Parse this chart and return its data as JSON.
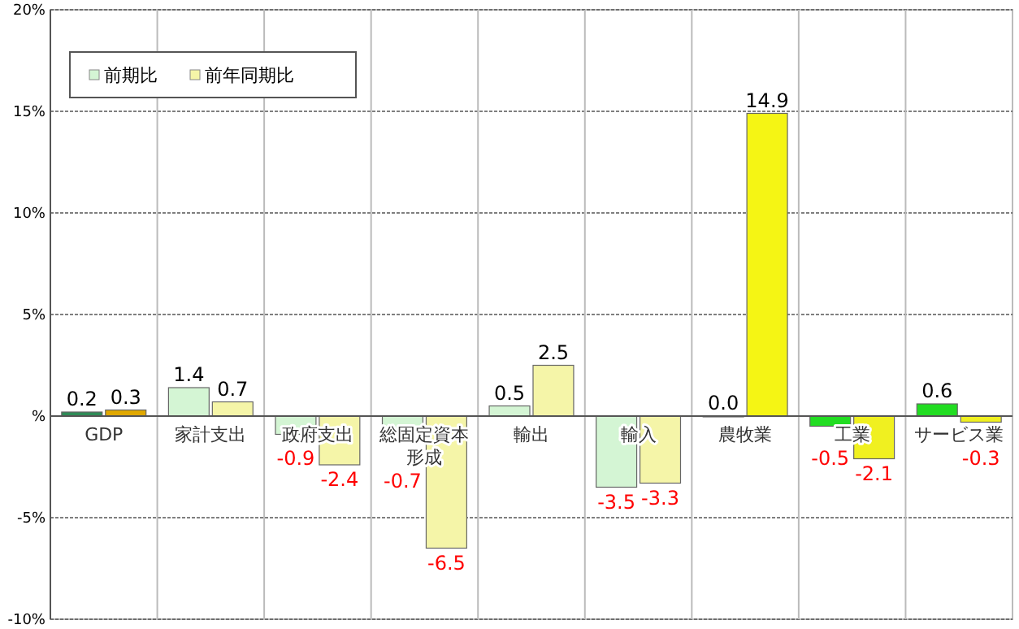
{
  "chart_data": {
    "type": "bar",
    "categories": [
      "GDP",
      "家計支出",
      "政府支出",
      "総固定資本形成",
      "輸出",
      "輸入",
      "農牧業",
      "工業",
      "サービス業"
    ],
    "series": [
      {
        "name": "前期比",
        "color": "#d4f5d4",
        "colors": [
          "#2e8b57",
          "#d4f5d4",
          "#d4f5d4",
          "#d4f5d4",
          "#d4f5d4",
          "#d4f5d4",
          "#d4f5d4",
          "#22dd22",
          "#22dd22"
        ],
        "values": [
          0.2,
          1.4,
          -0.9,
          -0.7,
          0.5,
          -3.5,
          0.0,
          -0.5,
          0.6
        ],
        "value_labels": [
          "0.2",
          "1.4",
          "-0.9",
          "-0.7",
          "0.5",
          "-3.5",
          "0.0",
          "-0.5",
          "0.6"
        ]
      },
      {
        "name": "前年同期比",
        "color": "#f5f5a8",
        "colors": [
          "#e0a800",
          "#f5f5a8",
          "#f5f5a8",
          "#f5f5a8",
          "#f5f5a8",
          "#f5f5a8",
          "#f5f514",
          "#f0f020",
          "#f0f020"
        ],
        "values": [
          0.3,
          0.7,
          -2.4,
          -6.5,
          2.5,
          -3.3,
          14.9,
          -2.1,
          -0.3
        ],
        "value_labels": [
          "0.3",
          "0.7",
          "-2.4",
          "-6.5",
          "2.5",
          "-3.3",
          "14.9",
          "-2.1",
          "-0.3"
        ]
      }
    ],
    "ylim": [
      -10,
      20
    ],
    "yticks": [
      {
        "value": -10,
        "label": "-10%"
      },
      {
        "value": -5,
        "label": "-5%"
      },
      {
        "value": 0,
        "label": "%"
      },
      {
        "value": 5,
        "label": "5%"
      },
      {
        "value": 10,
        "label": "10%"
      },
      {
        "value": 15,
        "label": "15%"
      },
      {
        "value": 20,
        "label": "20%"
      }
    ],
    "grid": true,
    "legend": "top left"
  }
}
